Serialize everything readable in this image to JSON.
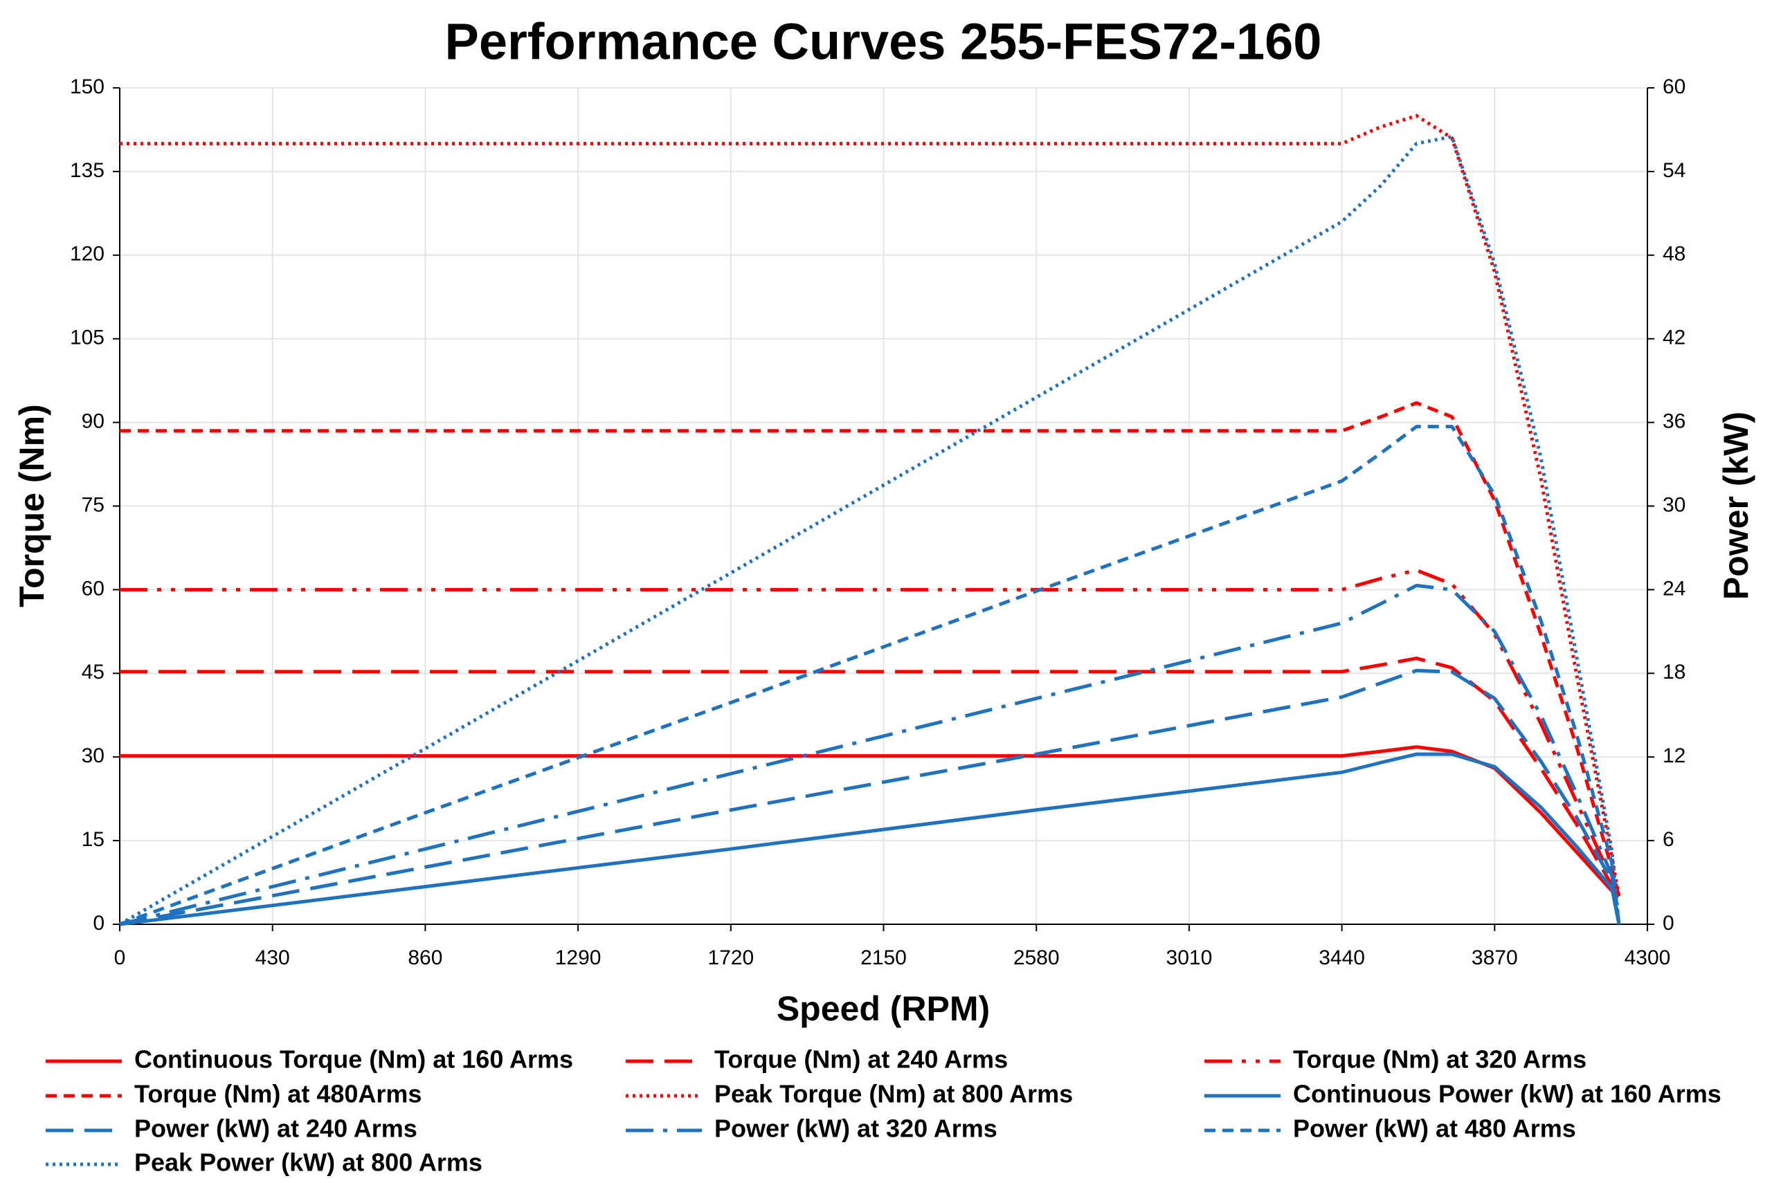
{
  "chart_data": {
    "type": "line",
    "title": "Performance Curves 255-FES72-160",
    "x_label": "Speed (RPM)",
    "y_label": "Torque (Nm)",
    "y2_label": "Power (kW)",
    "x": [
      0,
      860,
      1720,
      2580,
      3440,
      3550,
      3650,
      3750,
      3870,
      4000,
      4100,
      4200,
      4220
    ],
    "xlim": [
      0,
      4300
    ],
    "xticks": [
      0,
      430,
      860,
      1290,
      1720,
      2150,
      2580,
      3010,
      3440,
      3870,
      4300
    ],
    "ylim": [
      0,
      150
    ],
    "yticks": [
      0,
      15,
      30,
      45,
      60,
      75,
      90,
      105,
      120,
      135,
      150
    ],
    "y2lim": [
      0,
      60
    ],
    "y2ticks": [
      0,
      6,
      12,
      18,
      24,
      30,
      36,
      42,
      48,
      54,
      60
    ],
    "grid": true,
    "series": [
      {
        "name": "Continuous Torque (Nm) at 160 Arms",
        "color": "#ff0000",
        "dash": "solid",
        "values": [
          30.2,
          30.2,
          30.2,
          30.2,
          30.2,
          31,
          31.8,
          31,
          28,
          20,
          13,
          6,
          5
        ]
      },
      {
        "name": "Torque (Nm) at 240 Arms",
        "color": "#ff0000",
        "dash": "long-dash",
        "values": [
          45.3,
          45.3,
          45.3,
          45.3,
          45.3,
          46.5,
          47.7,
          46,
          40,
          28,
          18,
          7,
          5
        ]
      },
      {
        "name": "Torque (Nm) at 320 Arms",
        "color": "#ff0000",
        "dash": "dash-dot-dot",
        "values": [
          60,
          60,
          60,
          60,
          60,
          62,
          63.5,
          61,
          52,
          36,
          22,
          8,
          5
        ]
      },
      {
        "name": "Torque (Nm) at 480Arms",
        "color": "#ff0000",
        "dash": "dash",
        "values": [
          88.5,
          88.5,
          88.5,
          88.5,
          88.5,
          91,
          93.5,
          91,
          76,
          52,
          32,
          10,
          5
        ]
      },
      {
        "name": "Peak Torque (Nm) at 800  Arms",
        "color": "#ff0000",
        "dash": "dot",
        "values": [
          140,
          140,
          140,
          140,
          140,
          143,
          145,
          141,
          117,
          80,
          45,
          12,
          5
        ]
      },
      {
        "name": "Continuous Power (kW) at 160 Arms",
        "color": "#1f72c0",
        "dash": "solid",
        "axis": "y2",
        "values": [
          0,
          2.7,
          5.4,
          8.2,
          10.9,
          11.6,
          12.2,
          12.2,
          11.3,
          8.4,
          5.6,
          2.6,
          0
        ]
      },
      {
        "name": "Power (kW) at 240 Arms",
        "color": "#1f72c0",
        "dash": "long-dash",
        "axis": "y2",
        "values": [
          0,
          4.1,
          8.2,
          12.2,
          16.3,
          17.3,
          18.2,
          18.1,
          16.2,
          11.7,
          7.7,
          3.1,
          0
        ]
      },
      {
        "name": "Power (kW) at 320 Arms",
        "color": "#1f72c0",
        "dash": "dash-dot",
        "axis": "y2",
        "values": [
          0,
          5.4,
          10.8,
          16.2,
          21.6,
          23,
          24.3,
          24,
          21,
          15,
          9.4,
          3.5,
          0
        ]
      },
      {
        "name": "Power (kW) at 480 Arms",
        "color": "#1f72c0",
        "dash": "dash",
        "axis": "y2",
        "values": [
          0,
          8,
          15.9,
          23.9,
          31.8,
          33.8,
          35.7,
          35.7,
          30.8,
          21.8,
          13.7,
          4.4,
          0
        ]
      },
      {
        "name": "Peak Power (kW) at 800 Arms",
        "color": "#1f72c0",
        "dash": "dot",
        "axis": "y2",
        "values": [
          0,
          12.6,
          25.2,
          37.8,
          50.4,
          53,
          56,
          56.5,
          47.4,
          33.5,
          19.3,
          5.3,
          0
        ]
      }
    ]
  }
}
